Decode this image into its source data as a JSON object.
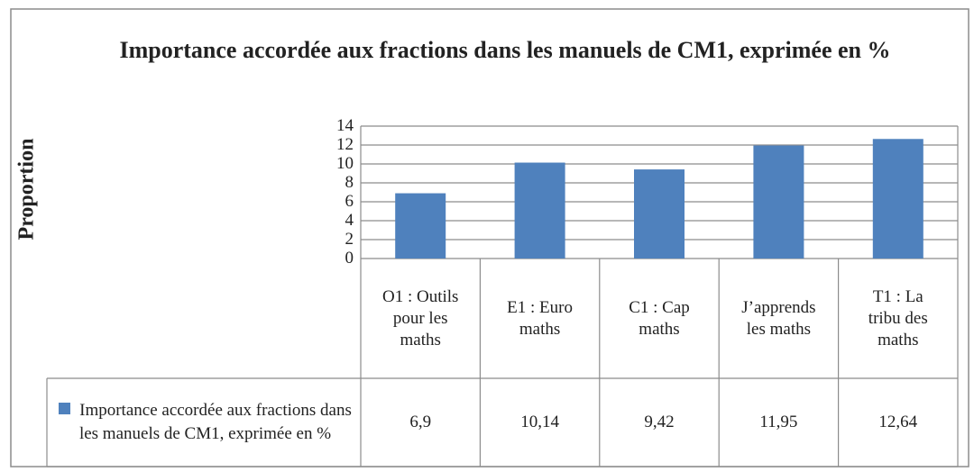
{
  "chart_data": {
    "type": "bar",
    "title": "Importance accordée aux fractions dans les manuels de CM1, exprimée en %",
    "y_label": "Proportion",
    "categories": [
      "O1 : Outils pour les maths",
      "E1 : Euro maths",
      "C1 : Cap maths",
      "J’apprends les maths",
      "T1 : La tribu des maths"
    ],
    "series": [
      {
        "name": "Importance accordée aux fractions dans les manuels de CM1, exprimée en %",
        "color": "#4f81bd",
        "values": [
          6.9,
          10.14,
          9.42,
          11.95,
          12.64
        ],
        "value_labels": [
          "6,9",
          "10,14",
          "9,42",
          "11,95",
          "12,64"
        ]
      }
    ],
    "ylim": [
      0,
      14
    ],
    "yticks": [
      0,
      2,
      4,
      6,
      8,
      10,
      12,
      14
    ],
    "grid": true
  }
}
